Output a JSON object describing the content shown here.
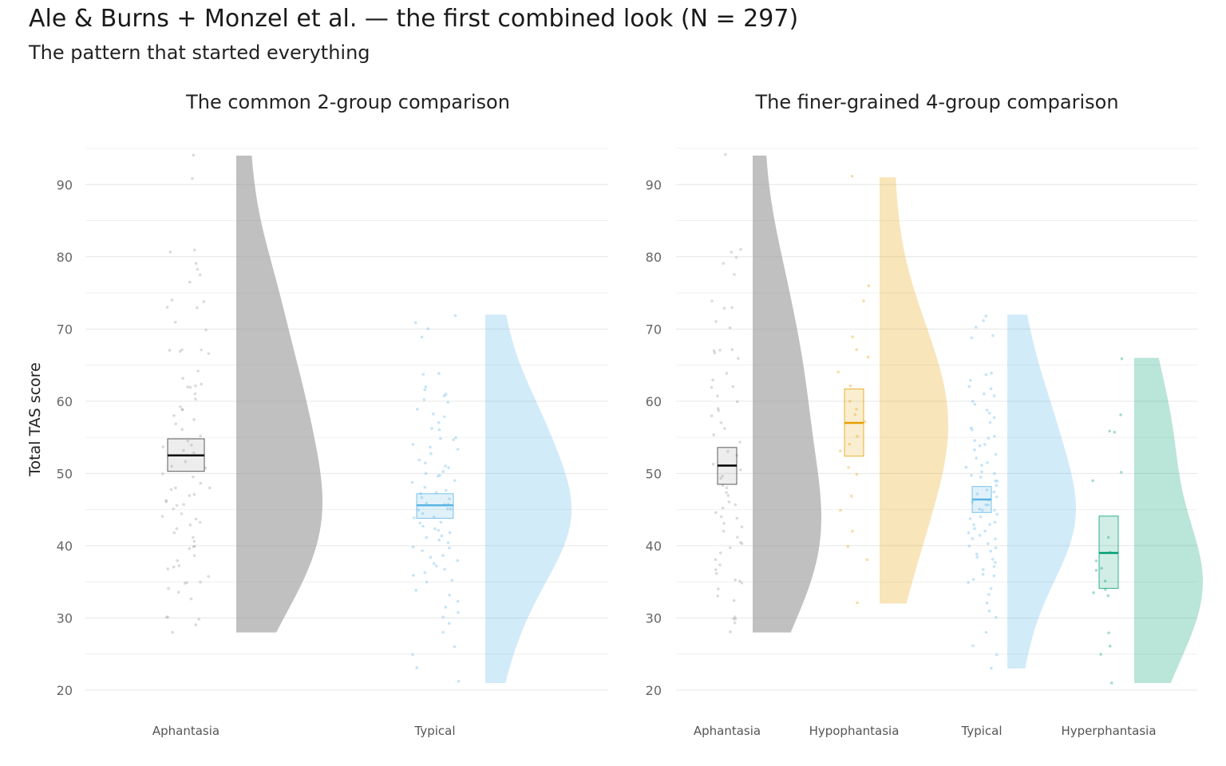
{
  "page": {
    "title": "Ale & Burns + Monzel et al. — the first combined look (N = 297)",
    "subtitle": "The pattern that started everything"
  },
  "chart_data": [
    {
      "type": "raincloud",
      "title": "The common 2-group comparison",
      "xlabel": "",
      "ylabel": "Total TAS score",
      "ylim": [
        20,
        95
      ],
      "yticks": [
        20,
        30,
        40,
        50,
        60,
        70,
        80,
        90
      ],
      "grid": true,
      "categories": [
        "Aphantasia",
        "Typical"
      ],
      "groups": [
        {
          "category": "Aphantasia",
          "color": "#999999",
          "median": 52.5,
          "q1": 50.3,
          "q3": 54.8,
          "min": 28,
          "max": 94,
          "density_peak": 46,
          "points": [
            94,
            91,
            81,
            80.8,
            79.2,
            78.2,
            77.4,
            76.4,
            74.1,
            73.9,
            73,
            72.9,
            70.9,
            70,
            67.1,
            67,
            67,
            66.9,
            66.6,
            64.1,
            63.3,
            62.3,
            62.1,
            62,
            61.8,
            61,
            60.2,
            59.2,
            59,
            58.7,
            57.9,
            57.3,
            56.8,
            56,
            55.2,
            54.6,
            54,
            53.7,
            53.2,
            52.8,
            51.8,
            51,
            50.8,
            50,
            49.5,
            48.7,
            48.1,
            48,
            47.8,
            47.2,
            47,
            46.4,
            46,
            45.8,
            45.7,
            45.2,
            44.4,
            44,
            43.8,
            43.4,
            43,
            42.2,
            41.8,
            41.2,
            40.6,
            40,
            39.8,
            39.5,
            38.6,
            38,
            37.2,
            37,
            36.8,
            35.8,
            35,
            34.9,
            34.8,
            34.2,
            33.4,
            32.6,
            30,
            30,
            29.9,
            29,
            28
          ]
        },
        {
          "category": "Typical",
          "color": "#5AB4E5",
          "median": 45.6,
          "q1": 43.8,
          "q3": 47.2,
          "min": 21,
          "max": 72,
          "density_peak": 43,
          "points": [
            71.8,
            71,
            70.2,
            68.8,
            64,
            63.8,
            62.1,
            61.6,
            61,
            60.8,
            60.1,
            59.7,
            58.9,
            58.2,
            57.9,
            57,
            56.2,
            56,
            55.1,
            54.8,
            54.6,
            54,
            53.8,
            53.2,
            52.7,
            52,
            51.6,
            51.2,
            50.8,
            50.4,
            50.1,
            49.8,
            49.5,
            49.1,
            48.8,
            48.2,
            47.8,
            47.5,
            47.1,
            46.8,
            46.4,
            46,
            45.8,
            45.6,
            45.2,
            45,
            44.8,
            44.4,
            44,
            43.8,
            43.4,
            43,
            42.8,
            42.4,
            42,
            41.8,
            41.4,
            41,
            40.8,
            40.4,
            40,
            39.8,
            39.2,
            38.8,
            38.4,
            38,
            37.6,
            37.2,
            36.8,
            36.2,
            35.8,
            35.2,
            34.8,
            34,
            33.2,
            32.4,
            31.6,
            30.8,
            30,
            29.2,
            28,
            26,
            25,
            23,
            21.2
          ]
        }
      ]
    },
    {
      "type": "raincloud",
      "title": "The finer-grained 4-group comparison",
      "xlabel": "",
      "ylabel": "",
      "ylim": [
        20,
        95
      ],
      "yticks": [
        20,
        30,
        40,
        50,
        60,
        70,
        80,
        90
      ],
      "grid": true,
      "categories": [
        "Aphantasia",
        "Hypophantasia",
        "Typical",
        "Hyperphantasia"
      ],
      "groups": [
        {
          "category": "Aphantasia",
          "color": "#999999",
          "median": 51.1,
          "q1": 48.5,
          "q3": 53.6,
          "min": 28,
          "max": 94,
          "density_peak": 46,
          "points": [
            94,
            81,
            80.8,
            80,
            79,
            77.4,
            74,
            73,
            72.9,
            70.9,
            70.2,
            67,
            67,
            66.9,
            66.6,
            65.8,
            64,
            63,
            62,
            61.8,
            60.8,
            60,
            59,
            58.8,
            57.9,
            57,
            56.2,
            55.2,
            54.2,
            53.2,
            52.4,
            51.2,
            50.6,
            49.8,
            49.2,
            48.4,
            48,
            47.4,
            46.8,
            46.2,
            45.8,
            45.2,
            44.6,
            44,
            43.8,
            43.2,
            42.6,
            42,
            41.2,
            40.6,
            40.2,
            39.8,
            39,
            38.2,
            37.2,
            36.8,
            36,
            35.2,
            35,
            34.8,
            34,
            33,
            32.4,
            30.2,
            30,
            29.8,
            29.2,
            28
          ]
        },
        {
          "category": "Hypophantasia",
          "color": "#E69F00",
          "median": 57,
          "q1": 52.4,
          "q3": 61.7,
          "min": 32,
          "max": 91,
          "density_peak": 58,
          "points": [
            91,
            76,
            74,
            69,
            67,
            66,
            64,
            62,
            60,
            59,
            58,
            57,
            55,
            54,
            53,
            51,
            50,
            47,
            45,
            42,
            40,
            38,
            32
          ]
        },
        {
          "category": "Typical",
          "color": "#5AB4E5",
          "median": 46.4,
          "q1": 44.6,
          "q3": 48.2,
          "min": 23,
          "max": 72,
          "density_peak": 43,
          "points": [
            71.8,
            71,
            70.2,
            69,
            68.8,
            64,
            63.8,
            63,
            62.1,
            61.6,
            61,
            60.8,
            60.1,
            59.7,
            58.9,
            58.2,
            57.9,
            57,
            56.2,
            56,
            55.1,
            54.8,
            54.6,
            54,
            53.8,
            53.2,
            52.7,
            52,
            51.6,
            51.2,
            50.8,
            50.4,
            50.1,
            49.8,
            49.5,
            49.1,
            48.8,
            48.2,
            47.8,
            47.5,
            47.1,
            46.8,
            46.4,
            46,
            45.8,
            45.6,
            45.2,
            45,
            44.8,
            44.4,
            44,
            43.8,
            43.4,
            43,
            42.8,
            42.4,
            42,
            41.8,
            41.4,
            41,
            40.8,
            40.4,
            40,
            39.8,
            39.2,
            38.8,
            38.4,
            38,
            37.6,
            37.2,
            36.8,
            36.2,
            35.8,
            35.2,
            34.8,
            34,
            33.2,
            32,
            31,
            30,
            28,
            26,
            25,
            23
          ]
        },
        {
          "category": "Hyperphantasia",
          "color": "#009E73",
          "median": 39,
          "q1": 34.1,
          "q3": 44.1,
          "min": 21,
          "max": 66,
          "density_peak": 34,
          "points": [
            66,
            58.2,
            56,
            55.8,
            50,
            49,
            41,
            39,
            38,
            37,
            36.6,
            35,
            34,
            33.4,
            33,
            28,
            26,
            25,
            21
          ]
        }
      ]
    }
  ]
}
